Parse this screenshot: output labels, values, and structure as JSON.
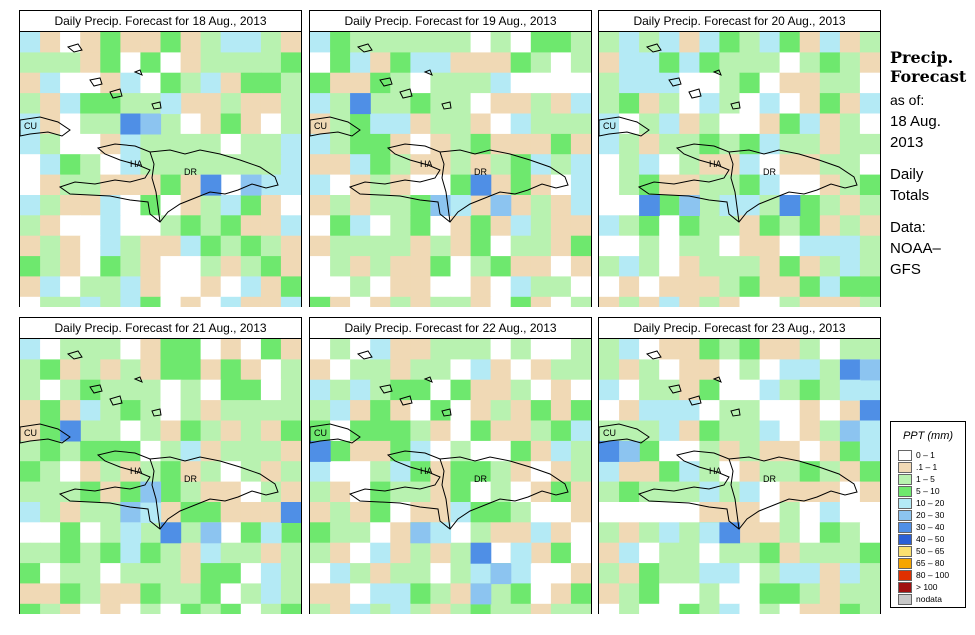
{
  "panels": [
    {
      "title": "Daily Precip. Forecast for  18 Aug., 2013",
      "seed": 11,
      "wet": 0.55
    },
    {
      "title": "Daily Precip. Forecast for  19 Aug., 2013",
      "seed": 23,
      "wet": 0.7
    },
    {
      "title": "Daily Precip. Forecast for  20 Aug., 2013",
      "seed": 37,
      "wet": 0.45
    },
    {
      "title": "Daily Precip. Forecast for  21 Aug., 2013",
      "seed": 41,
      "wet": 0.95
    },
    {
      "title": "Daily Precip. Forecast for  22 Aug., 2013",
      "seed": 53,
      "wet": 0.9
    },
    {
      "title": "Daily Precip. Forecast for  23 Aug., 2013",
      "seed": 67,
      "wet": 0.6
    }
  ],
  "country_labels": {
    "cu": "CU",
    "ha": "HA",
    "dr": "DR"
  },
  "side": {
    "title1": "Precip.",
    "title2": "Forecast",
    "asof": "as of:",
    "date1": "18 Aug.",
    "date2": "2013",
    "daily1": "Daily",
    "daily2": "Totals",
    "data1": "Data:",
    "data2": "NOAA–",
    "data3": "GFS"
  },
  "legend": {
    "title": "PPT (mm)",
    "entries": [
      {
        "label": "0 – 1",
        "color": "#ffffff"
      },
      {
        "label": ".1 – 1",
        "color": "#f0d9b5"
      },
      {
        "label": "1 – 5",
        "color": "#b8f2b0"
      },
      {
        "label": "5 – 10",
        "color": "#6ee86e"
      },
      {
        "label": "10 – 20",
        "color": "#b4eaf5"
      },
      {
        "label": "20 – 30",
        "color": "#8cc4f0"
      },
      {
        "label": "30 – 40",
        "color": "#4f8fe6"
      },
      {
        "label": "40 – 50",
        "color": "#2a5fd6"
      },
      {
        "label": "50 – 65",
        "color": "#fae070"
      },
      {
        "label": "65 – 80",
        "color": "#f5a500"
      },
      {
        "label": "80 – 100",
        "color": "#e03000"
      },
      {
        "label": "> 100",
        "color": "#a01010"
      },
      {
        "label": "nodata",
        "color": "#c8c8c8"
      }
    ]
  }
}
